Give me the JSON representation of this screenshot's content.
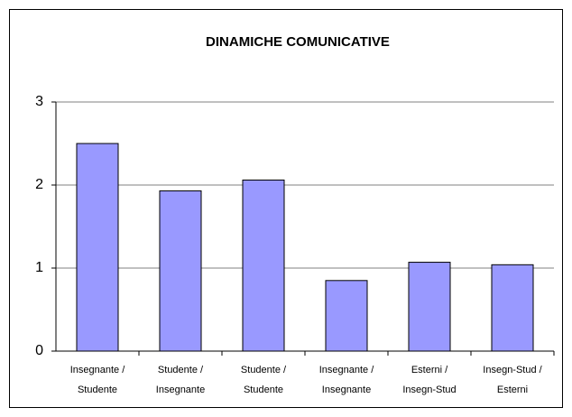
{
  "chart_data": {
    "type": "bar",
    "title": "DINAMICHE COMUNICATIVE",
    "categories": [
      [
        "Insegnante /",
        "Studente"
      ],
      [
        "Studente /",
        "Insegnante"
      ],
      [
        "Studente /",
        "Studente"
      ],
      [
        "Insegnante /",
        "Insegnante"
      ],
      [
        "Esterni /",
        "Insegn-Stud"
      ],
      [
        "Insegn-Stud /",
        "Esterni"
      ]
    ],
    "values": [
      2.5,
      1.93,
      2.06,
      0.85,
      1.07,
      1.04
    ],
    "color": "#9999ff",
    "ylim": [
      0,
      3
    ],
    "yticks": [
      0,
      1,
      2,
      3
    ],
    "grid": true
  }
}
